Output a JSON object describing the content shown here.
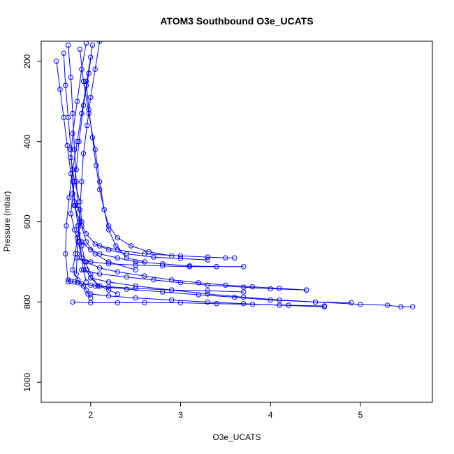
{
  "chart_data": {
    "type": "line",
    "title": "ATOM3 Southbound O3e_UCATS",
    "xlabel": "O3e_UCATS",
    "ylabel": "Pressure (mbar)",
    "xlim": [
      1.45,
      5.8
    ],
    "ylim": [
      1050,
      150
    ],
    "y_reversed": true,
    "x_ticks": [
      2,
      3,
      4,
      5
    ],
    "y_ticks": [
      200,
      400,
      600,
      800,
      1000
    ],
    "grid": false,
    "marker": "open-circle",
    "series_color": "#0000ff",
    "series": [
      {
        "x": [
          1.95,
          1.9,
          1.85,
          1.8,
          1.78,
          1.82,
          1.88,
          1.9,
          1.85,
          1.83,
          1.8,
          1.86,
          1.92,
          1.95,
          1.97,
          2.0
        ],
        "y": [
          155,
          220,
          300,
          380,
          440,
          500,
          550,
          600,
          640,
          680,
          720,
          745,
          760,
          770,
          780,
          790
        ]
      },
      {
        "x": [
          2.02,
          1.98,
          1.92,
          1.87,
          1.84,
          1.8,
          1.78,
          1.82,
          1.86,
          1.9,
          1.95,
          2.0,
          2.1,
          2.2,
          2.3
        ],
        "y": [
          160,
          230,
          310,
          400,
          470,
          530,
          580,
          620,
          650,
          690,
          720,
          740,
          760,
          770,
          780
        ]
      },
      {
        "x": [
          1.7,
          1.72,
          1.75,
          1.78,
          1.8,
          1.83,
          1.86,
          1.88,
          1.9,
          1.92,
          1.95
        ],
        "y": [
          180,
          260,
          340,
          420,
          500,
          560,
          610,
          650,
          690,
          720,
          750
        ]
      },
      {
        "x": [
          2.1,
          2.05,
          2.0,
          1.96,
          1.92,
          1.9,
          1.88,
          1.86,
          1.85,
          1.84
        ],
        "y": [
          150,
          220,
          290,
          360,
          430,
          500,
          570,
          630,
          680,
          730
        ]
      },
      {
        "x": [
          1.62,
          1.66,
          1.7,
          1.74,
          1.78,
          1.82,
          1.86,
          1.9,
          1.94,
          2.0,
          2.08
        ],
        "y": [
          200,
          270,
          340,
          410,
          480,
          550,
          610,
          660,
          700,
          730,
          760
        ]
      },
      {
        "x": [
          1.88,
          1.92,
          1.98,
          2.05,
          2.1,
          2.15,
          2.2,
          2.28,
          2.4,
          2.6
        ],
        "y": [
          170,
          250,
          330,
          420,
          500,
          570,
          620,
          660,
          690,
          700
        ]
      },
      {
        "x": [
          1.75,
          1.78,
          1.8,
          1.82,
          1.84,
          1.86,
          1.9,
          1.95,
          2.05,
          2.2,
          2.5
        ],
        "y": [
          160,
          240,
          330,
          420,
          500,
          560,
          610,
          650,
          680,
          700,
          720
        ]
      },
      {
        "x": [
          2.0,
          1.95,
          1.9,
          1.85,
          1.8,
          1.76,
          1.73,
          1.72,
          1.75
        ],
        "y": [
          190,
          260,
          330,
          400,
          470,
          540,
          610,
          680,
          750
        ]
      },
      {
        "x": [
          1.9,
          2.0,
          2.1,
          2.3,
          2.5,
          2.8,
          3.1,
          3.4,
          3.7
        ],
        "y": [
          650,
          670,
          680,
          690,
          700,
          705,
          710,
          712,
          712
        ]
      },
      {
        "x": [
          1.95,
          2.1,
          2.3,
          2.6,
          2.9,
          3.2,
          3.5,
          3.8,
          4.1,
          4.4
        ],
        "y": [
          700,
          715,
          725,
          735,
          745,
          752,
          758,
          762,
          766,
          770
        ]
      },
      {
        "x": [
          2.0,
          2.2,
          2.5,
          2.9,
          3.3,
          3.7,
          4.1,
          4.5,
          4.9
        ],
        "y": [
          740,
          750,
          760,
          770,
          780,
          788,
          795,
          800,
          802
        ]
      },
      {
        "x": [
          2.05,
          2.4,
          2.8,
          3.2,
          3.6,
          4.0,
          4.5,
          5.0,
          5.3,
          5.45,
          5.58
        ],
        "y": [
          760,
          768,
          775,
          782,
          788,
          795,
          800,
          806,
          808,
          812,
          812
        ]
      },
      {
        "x": [
          1.8,
          2.0,
          2.3,
          2.6,
          3.0,
          3.4,
          3.8,
          4.2,
          4.6
        ],
        "y": [
          800,
          802,
          802,
          802,
          802,
          804,
          806,
          808,
          810
        ]
      },
      {
        "x": [
          2.1,
          2.3,
          2.6,
          3.0,
          3.3,
          3.5,
          3.6
        ],
        "y": [
          660,
          670,
          680,
          685,
          688,
          690,
          690
        ]
      },
      {
        "x": [
          1.85,
          2.0,
          2.2,
          2.5,
          2.8,
          3.1,
          3.4
        ],
        "y": [
          690,
          700,
          705,
          708,
          710,
          712,
          712
        ]
      },
      {
        "x": [
          1.9,
          2.1,
          2.4,
          2.7,
          3.0,
          3.3,
          3.7,
          4.0,
          4.4
        ],
        "y": [
          720,
          730,
          738,
          745,
          752,
          758,
          763,
          767,
          770
        ]
      },
      {
        "x": [
          1.75,
          1.78,
          1.82,
          1.85,
          1.9,
          2.0,
          2.2,
          2.5,
          2.9,
          3.3,
          3.7
        ],
        "y": [
          745,
          748,
          750,
          752,
          755,
          758,
          762,
          766,
          770,
          772,
          775
        ]
      },
      {
        "x": [
          2.0,
          2.2,
          2.5,
          2.9,
          3.3,
          3.7,
          4.1,
          4.6
        ],
        "y": [
          780,
          785,
          790,
          795,
          800,
          804,
          808,
          812
        ]
      },
      {
        "x": [
          1.95,
          1.98,
          2.02,
          2.06,
          2.1,
          2.15,
          2.2,
          2.3,
          2.45,
          2.65,
          2.9
        ],
        "y": [
          250,
          320,
          390,
          460,
          520,
          570,
          610,
          640,
          660,
          675,
          685
        ]
      },
      {
        "x": [
          1.82,
          1.88,
          1.95,
          2.05,
          2.2,
          2.4,
          2.7,
          3.0,
          3.3
        ],
        "y": [
          560,
          600,
          630,
          655,
          670,
          680,
          688,
          692,
          695
        ]
      }
    ]
  }
}
